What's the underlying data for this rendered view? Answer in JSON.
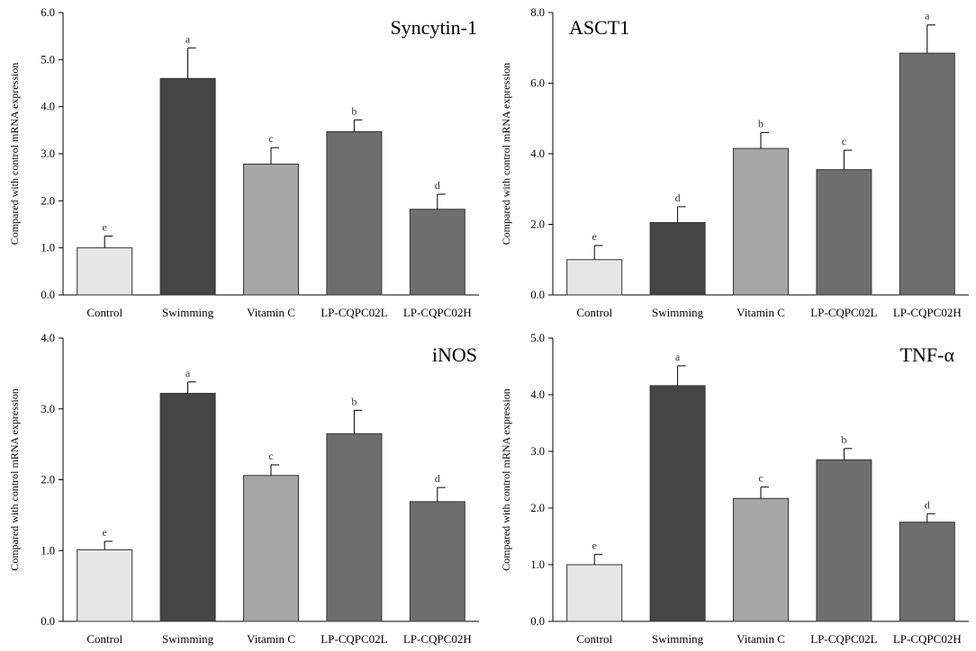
{
  "figure": {
    "colors": {
      "axis": "#000000",
      "bar_stroke": "#333333",
      "bars": [
        "#e6e6e6",
        "#454545",
        "#a6a6a6",
        "#6e6e6e",
        "#6e6e6e"
      ]
    }
  },
  "chart_data": [
    {
      "type": "bar",
      "title": "Syncytin-1",
      "ylabel": "Compared with control mRNA expression",
      "xlabel": "",
      "categories": [
        "Control",
        "Swimming",
        "Vitamin C",
        "LP-CQPC02L",
        "LP-CQPC02H"
      ],
      "values": [
        1.0,
        4.6,
        2.78,
        3.47,
        1.82
      ],
      "errors": [
        0.25,
        0.65,
        0.35,
        0.25,
        0.32
      ],
      "significance": [
        "e",
        "a",
        "c",
        "b",
        "d"
      ],
      "ylim": [
        0,
        6
      ],
      "yticks": [
        "0.0",
        "1.0",
        "2.0",
        "3.0",
        "4.0",
        "5.0",
        "6.0"
      ],
      "legend": "none",
      "grid": false
    },
    {
      "type": "bar",
      "title": "ASCT1",
      "ylabel": "Compared with control mRNA expression",
      "xlabel": "",
      "categories": [
        "Control",
        "Swimming",
        "Vitamin C",
        "LP-CQPC02L",
        "LP-CQPC02H"
      ],
      "values": [
        1.0,
        2.05,
        4.15,
        3.55,
        6.85
      ],
      "errors": [
        0.4,
        0.45,
        0.45,
        0.55,
        0.8
      ],
      "significance": [
        "e",
        "d",
        "b",
        "c",
        "a"
      ],
      "ylim": [
        0,
        8
      ],
      "yticks": [
        "0.0",
        "2.0",
        "4.0",
        "6.0",
        "8.0"
      ],
      "legend": "none",
      "grid": false
    },
    {
      "type": "bar",
      "title": "iNOS",
      "ylabel": "Compared with control mRNA expression",
      "xlabel": "",
      "categories": [
        "Control",
        "Swimming",
        "Vitamin C",
        "LP-CQPC02L",
        "LP-CQPC02H"
      ],
      "values": [
        1.01,
        3.22,
        2.06,
        2.65,
        1.69
      ],
      "errors": [
        0.12,
        0.16,
        0.15,
        0.33,
        0.2
      ],
      "significance": [
        "e",
        "a",
        "c",
        "b",
        "d"
      ],
      "ylim": [
        0,
        4
      ],
      "yticks": [
        "0.0",
        "1.0",
        "2.0",
        "3.0",
        "4.0"
      ],
      "legend": "none",
      "grid": false
    },
    {
      "type": "bar",
      "title": "TNF-α",
      "ylabel": "Compared with control mRNA expression",
      "xlabel": "",
      "categories": [
        "Control",
        "Swimming",
        "Vitamin C",
        "LP-CQPC02L",
        "LP-CQPC02H"
      ],
      "values": [
        1.0,
        4.16,
        2.17,
        2.85,
        1.75
      ],
      "errors": [
        0.18,
        0.35,
        0.2,
        0.2,
        0.15
      ],
      "significance": [
        "e",
        "a",
        "c",
        "b",
        "d"
      ],
      "ylim": [
        0,
        5
      ],
      "yticks": [
        "0.0",
        "1.0",
        "2.0",
        "3.0",
        "4.0",
        "5.0"
      ],
      "legend": "none",
      "grid": false
    }
  ]
}
